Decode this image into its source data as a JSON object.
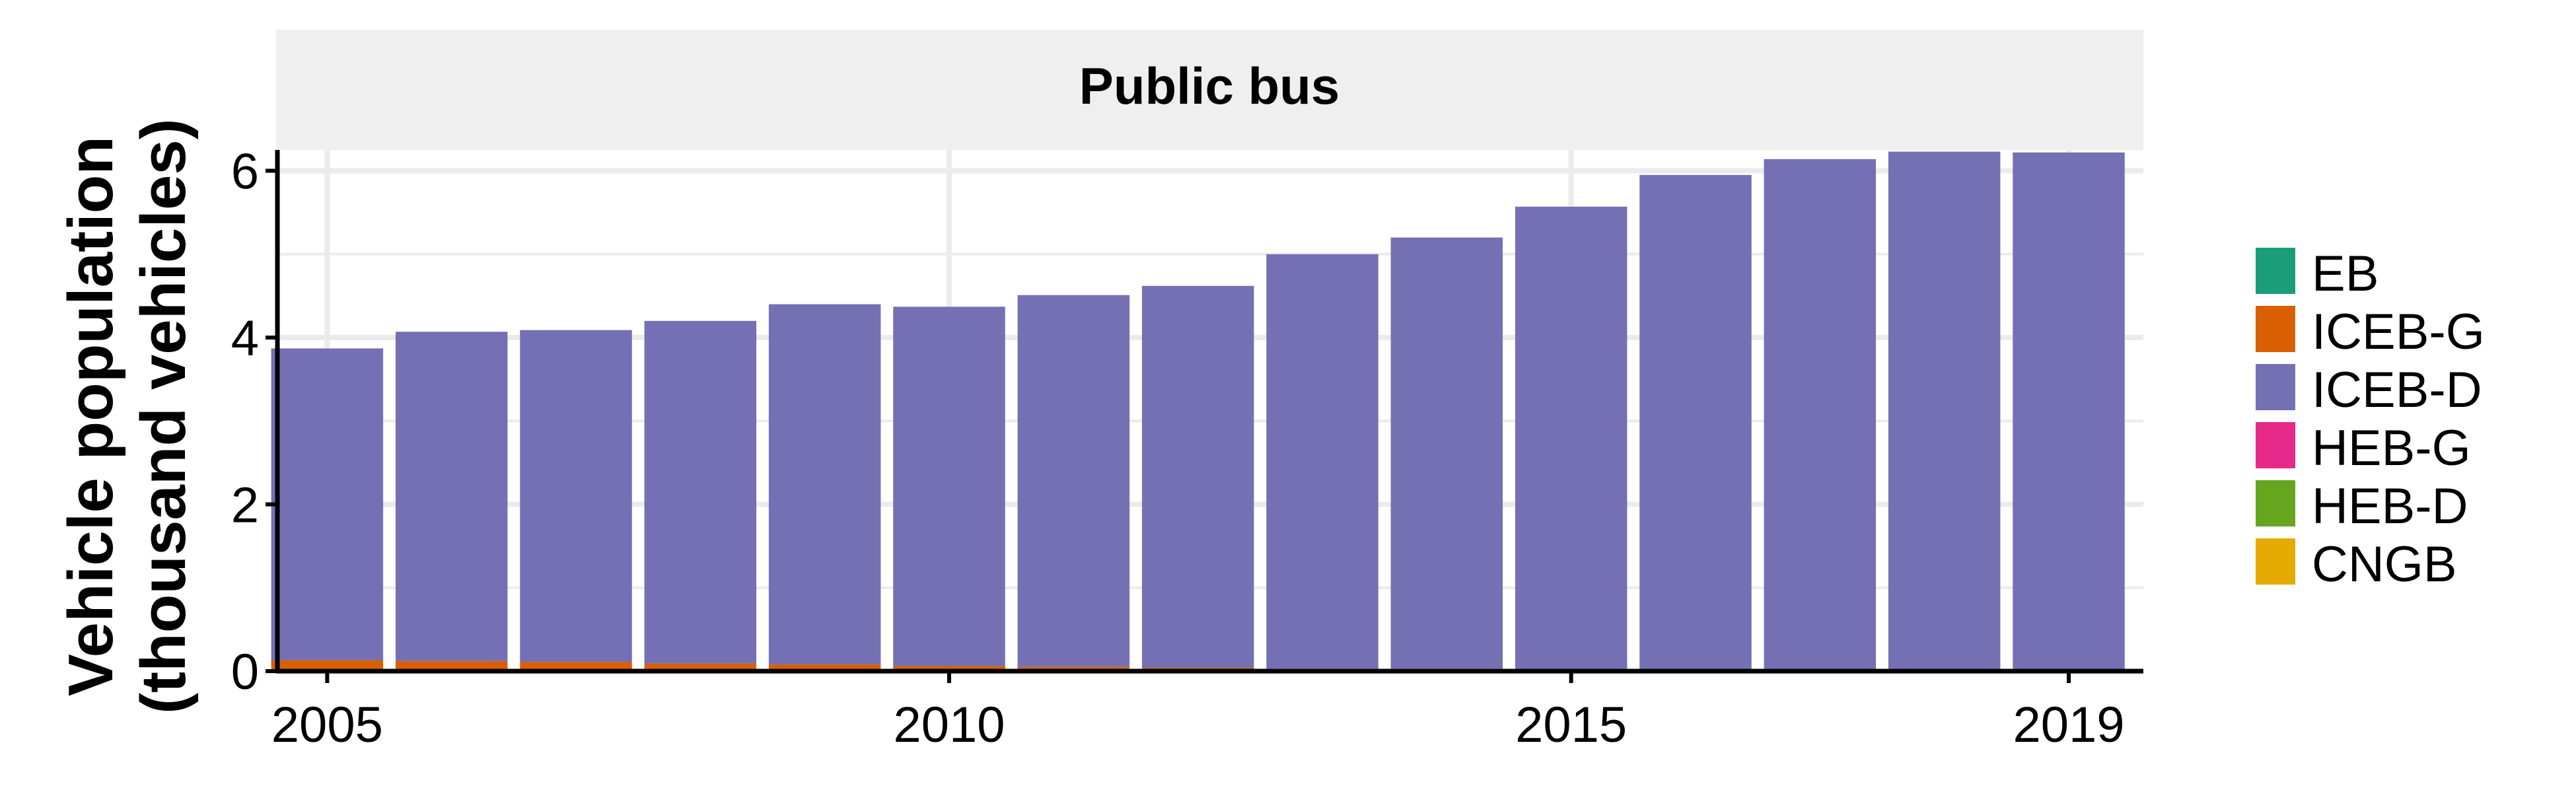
{
  "chart_data": {
    "type": "bar",
    "stacked": true,
    "facet_title": "Public bus",
    "ylabel_line1": "Vehicle population",
    "ylabel_line2": "(thousand vehicles)",
    "xlabel": "",
    "ylim": [
      0,
      6.25
    ],
    "y_ticks": [
      0,
      2,
      4,
      6
    ],
    "x_range": [
      2004.6,
      2019.6
    ],
    "x_ticks": [
      2005,
      2010,
      2015,
      2019
    ],
    "grid": true,
    "legend_position": "right",
    "categories": [
      2005,
      2006,
      2007,
      2008,
      2009,
      2010,
      2011,
      2012,
      2013,
      2014,
      2015,
      2016,
      2017,
      2018,
      2019
    ],
    "series": [
      {
        "name": "EB",
        "color": "#1b9e77",
        "values": [
          0,
          0,
          0,
          0,
          0,
          0,
          0,
          0,
          0,
          0,
          0,
          0,
          0,
          0,
          0
        ]
      },
      {
        "name": "ICEB-G",
        "color": "#d95f02",
        "values": [
          0.13,
          0.12,
          0.11,
          0.09,
          0.08,
          0.06,
          0.05,
          0.04,
          0.03,
          0.03,
          0.02,
          0.02,
          0.01,
          0.01,
          0.01
        ]
      },
      {
        "name": "ICEB-D",
        "color": "#7570b3",
        "values": [
          3.74,
          3.95,
          3.98,
          4.11,
          4.32,
          4.31,
          4.46,
          4.58,
          4.97,
          5.17,
          5.55,
          5.93,
          6.13,
          6.22,
          6.21
        ]
      },
      {
        "name": "HEB-G",
        "color": "#e7298a",
        "values": [
          0,
          0,
          0,
          0,
          0,
          0,
          0,
          0,
          0,
          0,
          0,
          0,
          0,
          0,
          0
        ]
      },
      {
        "name": "HEB-D",
        "color": "#66a61e",
        "values": [
          0,
          0,
          0,
          0,
          0,
          0,
          0,
          0,
          0,
          0,
          0,
          0,
          0,
          0,
          0
        ]
      },
      {
        "name": "CNGB",
        "color": "#e6ab02",
        "values": [
          0,
          0,
          0,
          0,
          0,
          0,
          0,
          0,
          0,
          0,
          0,
          0,
          0,
          0,
          0
        ]
      }
    ],
    "panel_background": "#ffffff",
    "strip_background": "#efefef",
    "grid_color": "#ebebeb"
  }
}
